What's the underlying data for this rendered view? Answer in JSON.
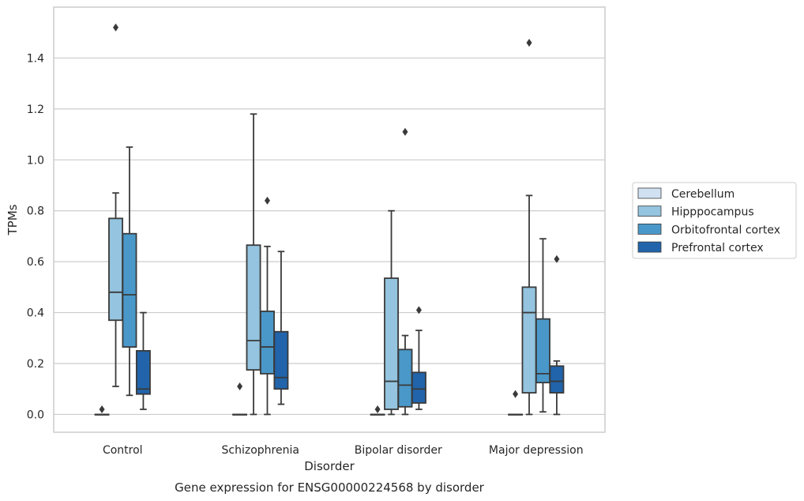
{
  "chart_data": {
    "type": "box",
    "caption": "Gene expression for ENSG00000224568 by disorder",
    "xlabel": "Disorder",
    "ylabel": "TPMs",
    "ylim": [
      -0.07,
      1.6
    ],
    "yticks": [
      "0.0",
      "0.2",
      "0.4",
      "0.6",
      "0.8",
      "1.0",
      "1.2",
      "1.4"
    ],
    "categories": [
      "Control",
      "Schizophrenia",
      "Bipolar disorder",
      "Major depression"
    ],
    "grid": "horizontal",
    "legend_position": "right",
    "series": [
      {
        "name": "Cerebellum",
        "color": "#d0e1f2",
        "boxes": [
          {
            "q1": 0.0,
            "median": 0.0,
            "q3": 0.0,
            "whislo": 0.0,
            "whishi": 0.0,
            "fliers": [
              0.02
            ]
          },
          {
            "q1": 0.0,
            "median": 0.0,
            "q3": 0.0,
            "whislo": 0.0,
            "whishi": 0.0,
            "fliers": [
              0.11
            ]
          },
          {
            "q1": 0.0,
            "median": 0.0,
            "q3": 0.0,
            "whislo": 0.0,
            "whishi": 0.0,
            "fliers": [
              0.02
            ]
          },
          {
            "q1": 0.0,
            "median": 0.0,
            "q3": 0.0,
            "whislo": 0.0,
            "whishi": 0.0,
            "fliers": [
              0.08
            ]
          }
        ]
      },
      {
        "name": "Hipppocampus",
        "color": "#94c4df",
        "boxes": [
          {
            "q1": 0.37,
            "median": 0.48,
            "q3": 0.77,
            "whislo": 0.11,
            "whishi": 0.87,
            "fliers": [
              1.52
            ]
          },
          {
            "q1": 0.175,
            "median": 0.29,
            "q3": 0.665,
            "whislo": 0.0,
            "whishi": 1.18,
            "fliers": []
          },
          {
            "q1": 0.02,
            "median": 0.13,
            "q3": 0.535,
            "whislo": 0.0,
            "whishi": 0.8,
            "fliers": []
          },
          {
            "q1": 0.085,
            "median": 0.4,
            "q3": 0.5,
            "whislo": 0.0,
            "whishi": 0.86,
            "fliers": [
              1.46
            ]
          }
        ]
      },
      {
        "name": "Orbitofrontal cortex",
        "color": "#4a98c9",
        "boxes": [
          {
            "q1": 0.265,
            "median": 0.47,
            "q3": 0.71,
            "whislo": 0.075,
            "whishi": 1.05,
            "fliers": []
          },
          {
            "q1": 0.16,
            "median": 0.265,
            "q3": 0.405,
            "whislo": 0.0,
            "whishi": 0.66,
            "fliers": [
              0.84
            ]
          },
          {
            "q1": 0.03,
            "median": 0.115,
            "q3": 0.255,
            "whislo": 0.0,
            "whishi": 0.31,
            "fliers": [
              1.11
            ]
          },
          {
            "q1": 0.125,
            "median": 0.16,
            "q3": 0.375,
            "whislo": 0.01,
            "whishi": 0.69,
            "fliers": []
          }
        ]
      },
      {
        "name": "Prefrontal cortex",
        "color": "#2164ab",
        "boxes": [
          {
            "q1": 0.08,
            "median": 0.1,
            "q3": 0.25,
            "whislo": 0.02,
            "whishi": 0.4,
            "fliers": []
          },
          {
            "q1": 0.1,
            "median": 0.145,
            "q3": 0.325,
            "whislo": 0.04,
            "whishi": 0.64,
            "fliers": []
          },
          {
            "q1": 0.045,
            "median": 0.1,
            "q3": 0.165,
            "whislo": 0.02,
            "whishi": 0.33,
            "fliers": [
              0.41
            ]
          },
          {
            "q1": 0.085,
            "median": 0.13,
            "q3": 0.19,
            "whislo": 0.0,
            "whishi": 0.21,
            "fliers": [
              0.61
            ]
          }
        ]
      }
    ]
  }
}
